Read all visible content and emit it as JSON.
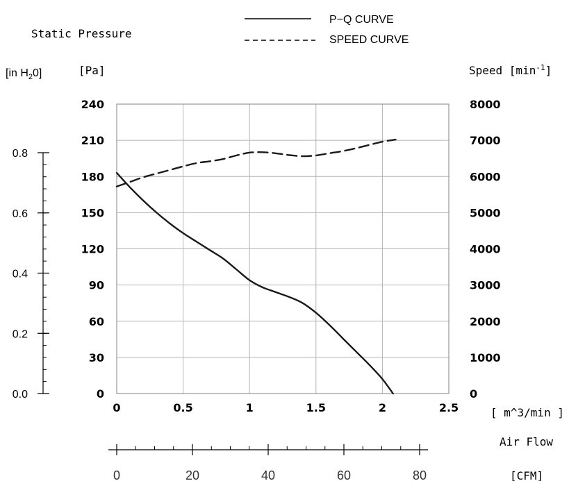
{
  "chart_data": {
    "type": "line",
    "legend": {
      "placement": "top-right",
      "entries": [
        {
          "label": "P−Q CURVE",
          "style": "solid"
        },
        {
          "label": "SPEED CURVE",
          "style": "dashed"
        }
      ]
    },
    "labels": {
      "static_pressure": "Static Pressure",
      "in_h2o_prefix": "[in H",
      "in_h2o_sub": "2",
      "in_h2o_suffix": "0]",
      "pa": "[Pa]",
      "speed_prefix": "Speed [min",
      "speed_sup": "-1",
      "speed_suffix": "]",
      "m3min": "[ m^3/min ]",
      "air_flow": "Air Flow",
      "cfm": "[CFM]"
    },
    "x_axis_m3min": {
      "range": [
        0,
        2.5
      ],
      "ticks": [
        "0",
        "0.5",
        "1",
        "1.5",
        "2",
        "2.5"
      ]
    },
    "y_axis_pa": {
      "range": [
        0,
        240
      ],
      "ticks": [
        "0",
        "30",
        "60",
        "90",
        "120",
        "150",
        "180",
        "210",
        "240"
      ]
    },
    "y_axis_speed": {
      "range": [
        0,
        8000
      ],
      "ticks": [
        "0",
        "1000",
        "2000",
        "3000",
        "4000",
        "5000",
        "6000",
        "7000",
        "8000"
      ]
    },
    "y_axis_inh2o": {
      "range": [
        0,
        0.8
      ],
      "ticks": [
        "0.0",
        "0.2",
        "0.4",
        "0.6",
        "0.8"
      ],
      "minor_step": 0.04
    },
    "x_axis_cfm": {
      "range": [
        0,
        80
      ],
      "ticks": [
        "0",
        "20",
        "40",
        "60",
        "80"
      ],
      "minor_step": 5
    },
    "grid": true,
    "series": [
      {
        "name": "P−Q CURVE",
        "style": "solid",
        "unit": "Pa",
        "x": [
          0,
          0.1,
          0.2,
          0.3,
          0.4,
          0.5,
          0.6,
          0.7,
          0.8,
          0.9,
          1.0,
          1.1,
          1.2,
          1.3,
          1.4,
          1.5,
          1.6,
          1.7,
          1.8,
          1.9,
          2.0,
          2.08
        ],
        "values": [
          183,
          171,
          160,
          150,
          141,
          133,
          126,
          119,
          112,
          103,
          94,
          88,
          84,
          80,
          75,
          67,
          57,
          46,
          35,
          24,
          12,
          0
        ]
      },
      {
        "name": "SPEED CURVE",
        "style": "dashed",
        "unit": "min-1",
        "x": [
          0,
          0.1,
          0.2,
          0.3,
          0.4,
          0.5,
          0.6,
          0.7,
          0.8,
          0.9,
          1.0,
          1.1,
          1.2,
          1.3,
          1.4,
          1.5,
          1.6,
          1.7,
          1.8,
          1.9,
          2.0,
          2.1
        ],
        "values": [
          5720,
          5850,
          5980,
          6080,
          6180,
          6280,
          6370,
          6420,
          6480,
          6580,
          6660,
          6670,
          6640,
          6590,
          6560,
          6580,
          6640,
          6700,
          6780,
          6870,
          6960,
          7020
        ]
      }
    ]
  }
}
